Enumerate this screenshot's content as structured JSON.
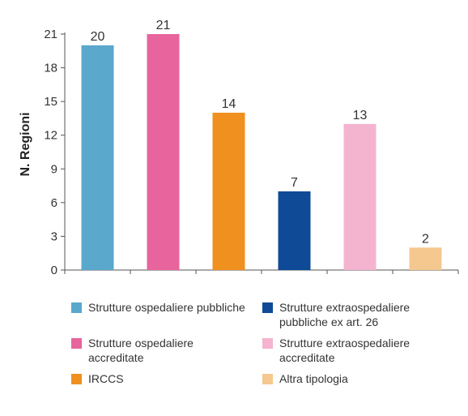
{
  "chart_data": {
    "type": "bar",
    "ylabel": "N. Regioni",
    "ylim": [
      0,
      21
    ],
    "yticks": [
      0,
      3,
      6,
      9,
      12,
      15,
      18,
      21
    ],
    "grid": false,
    "legend_position": "bottom",
    "categories": [
      "Strutture ospedaliere pubbliche",
      "Strutture ospedaliere accreditate",
      "IRCCS",
      "Strutture extraospedaliere pubbliche ex art. 26",
      "Strutture extraospedaliere accreditate",
      "Altra tipologia"
    ],
    "values": [
      20,
      21,
      14,
      7,
      13,
      2
    ],
    "data_labels": [
      "20",
      "21",
      "14",
      "7",
      "13",
      "2"
    ],
    "colors": [
      "#5aa9cc",
      "#e8649c",
      "#f0901e",
      "#0e4a96",
      "#f4b4d0",
      "#f5c890"
    ]
  },
  "legend": [
    {
      "label": "Strutture ospedaliere pubbliche",
      "color": "#5aa9cc"
    },
    {
      "label": "Strutture extraospedaliere pubbliche ex art. 26",
      "color": "#0e4a96"
    },
    {
      "label": "Strutture ospedaliere accreditate",
      "color": "#e8649c"
    },
    {
      "label": "Strutture extraospedaliere accreditate",
      "color": "#f4b4d0"
    },
    {
      "label": "IRCCS",
      "color": "#f0901e"
    },
    {
      "label": "Altra tipologia",
      "color": "#f5c890"
    }
  ]
}
